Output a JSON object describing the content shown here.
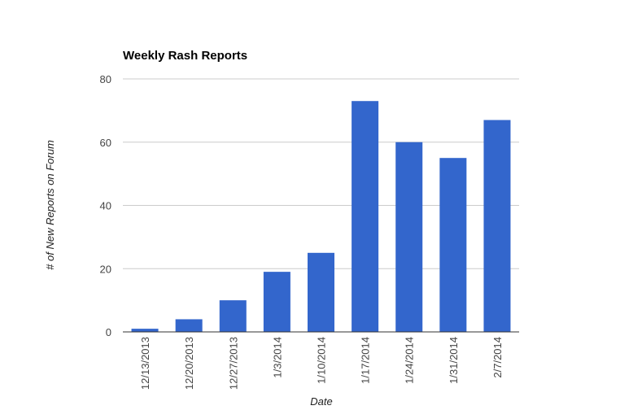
{
  "chart_data": {
    "type": "bar",
    "title": "Weekly Rash Reports",
    "x_label": "Date",
    "y_label": "# of New Reports on Forum",
    "categories": [
      "12/13/2013",
      "12/20/2013",
      "12/27/2013",
      "1/3/2014",
      "1/10/2014",
      "1/17/2014",
      "1/24/2014",
      "1/31/2014",
      "2/7/2014"
    ],
    "values": [
      1,
      4,
      10,
      19,
      25,
      73,
      60,
      55,
      67
    ],
    "color": "#3366cc",
    "ylim": [
      0,
      80
    ],
    "yticks": [
      0,
      20,
      40,
      60,
      80
    ],
    "grid": true
  }
}
